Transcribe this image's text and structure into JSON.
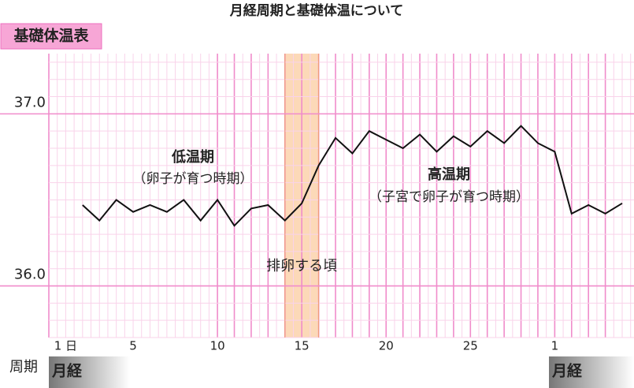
{
  "chart_data": {
    "type": "line",
    "title": "月経周期と基礎体温について",
    "badge": "基礎体温表",
    "x": [
      2,
      3,
      4,
      5,
      6,
      7,
      8,
      9,
      10,
      11,
      12,
      13,
      14,
      15,
      16,
      17,
      18,
      19,
      20,
      21,
      22,
      23,
      24,
      25,
      26,
      27,
      28,
      29,
      30,
      31,
      32,
      33,
      34
    ],
    "series": [
      {
        "name": "基礎体温",
        "color": "#111111",
        "values": [
          36.47,
          36.38,
          36.5,
          36.43,
          36.47,
          36.43,
          36.5,
          36.38,
          36.5,
          36.35,
          36.45,
          36.47,
          36.38,
          36.48,
          36.7,
          36.86,
          36.77,
          36.9,
          36.85,
          36.8,
          36.88,
          36.78,
          36.87,
          36.81,
          36.9,
          36.83,
          36.93,
          36.83,
          36.78,
          36.42,
          36.47,
          36.42,
          36.48
        ]
      }
    ],
    "xlim": [
      0,
      34.7
    ],
    "xticks": [
      {
        "value": 1,
        "label": "1 日"
      },
      5,
      10,
      15,
      20,
      25,
      {
        "value": 30,
        "label": "1"
      }
    ],
    "ylim": [
      35.7,
      37.35
    ],
    "yticks": [
      {
        "value": 36,
        "label": "36.0"
      },
      {
        "value": 37,
        "label": "37.0"
      }
    ],
    "grid": true,
    "band": {
      "label": "排卵する頃",
      "x": [
        14,
        16
      ],
      "color": "#fcd9b8"
    },
    "annotations": [
      "低温期",
      "（卵子が育つ時期）",
      "高温期",
      "（子宮で卵子が育つ時期）"
    ],
    "cycle_label": "周期",
    "menses": [
      "月経",
      "月経"
    ]
  }
}
